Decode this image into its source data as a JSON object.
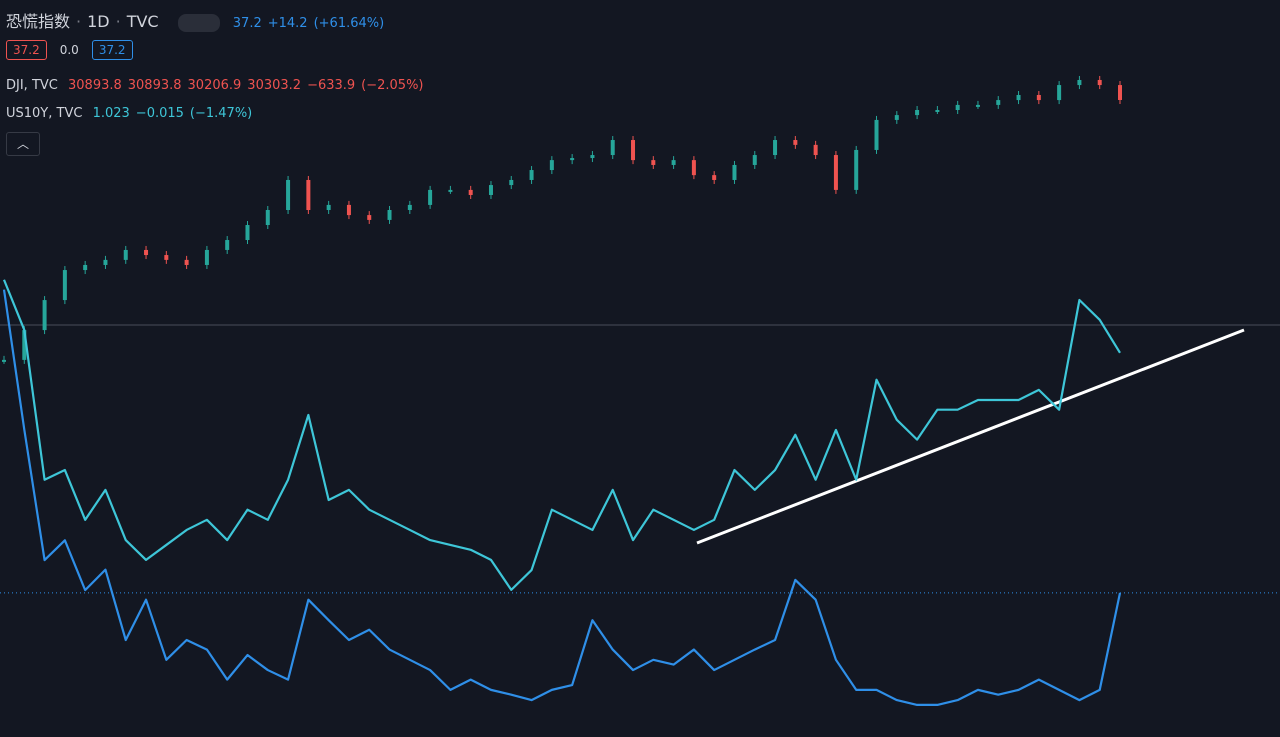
{
  "legend": {
    "symbol": "恐慌指数",
    "interval": "1D",
    "exchange": "TVC",
    "last": "37.2",
    "change": "+14.2",
    "change_pct": "(+61.64%)",
    "badges": [
      "37.2",
      "0.0",
      "37.2"
    ]
  },
  "overlays": [
    {
      "name": "DJI, TVC",
      "fields": [
        "30893.8",
        "30893.8",
        "30206.9",
        "30303.2",
        "−633.9",
        "(−2.05%)"
      ]
    },
    {
      "name": "US10Y, TVC",
      "fields": [
        "1.023",
        "−0.015",
        "(−1.47%)"
      ]
    }
  ],
  "chart_data": {
    "type": "line",
    "series": [
      {
        "name": "DJI",
        "color": "#26a69a",
        "down_color": "#ef5350",
        "style": "candle",
        "ylim": [
          2721,
          34633
        ],
        "values": [
          19050,
          20340,
          21640,
          22940,
          23160,
          23380,
          23810,
          23590,
          23380,
          23160,
          23810,
          24240,
          24890,
          25540,
          26840,
          25540,
          25760,
          25320,
          25110,
          25540,
          25760,
          26410,
          26410,
          26190,
          26620,
          26840,
          27270,
          27700,
          27790,
          27920,
          28570,
          27700,
          27490,
          27700,
          27050,
          26840,
          27490,
          27920,
          28570,
          28360,
          27920,
          26410,
          28140,
          29440,
          29650,
          29870,
          29870,
          30090,
          30090,
          30300,
          30520,
          30300,
          30950,
          31170,
          30950,
          30303.2
        ]
      },
      {
        "name": "US10Y",
        "color": "#3ec6d8",
        "style": "line",
        "ylim": [
          0.151,
          1.824
        ],
        "values": [
          1.189,
          1.075,
          0.735,
          0.757,
          0.644,
          0.712,
          0.598,
          0.553,
          0.587,
          0.621,
          0.644,
          0.598,
          0.667,
          0.644,
          0.735,
          0.882,
          0.689,
          0.712,
          0.667,
          0.644,
          0.621,
          0.598,
          0.587,
          0.576,
          0.553,
          0.485,
          0.53,
          0.667,
          0.644,
          0.621,
          0.712,
          0.598,
          0.667,
          0.644,
          0.621,
          0.644,
          0.757,
          0.712,
          0.757,
          0.837,
          0.735,
          0.848,
          0.735,
          0.962,
          0.871,
          0.826,
          0.894,
          0.894,
          0.916,
          0.916,
          0.916,
          0.939,
          0.894,
          1.143,
          1.098,
          1.023
        ]
      },
      {
        "name": "恐慌指数",
        "color": "#2f8fe8",
        "style": "line",
        "ylim": [
          16.1,
          124
        ],
        "values": [
          81.6,
          61.1,
          42,
          44.9,
          37.6,
          40.6,
          30.3,
          36.2,
          27.4,
          30.3,
          28.9,
          24.5,
          28.1,
          25.9,
          24.5,
          36.2,
          33.2,
          30.3,
          31.8,
          28.9,
          27.4,
          25.9,
          23,
          24.5,
          23,
          22.3,
          21.5,
          23,
          23.7,
          33.2,
          28.9,
          25.9,
          27.4,
          26.7,
          28.9,
          25.9,
          27.4,
          28.9,
          30.3,
          39.1,
          36.2,
          27.4,
          23,
          23,
          21.5,
          20.8,
          20.8,
          21.5,
          23,
          22.3,
          23,
          24.5,
          23,
          21.5,
          23,
          37.2
        ]
      }
    ]
  }
}
